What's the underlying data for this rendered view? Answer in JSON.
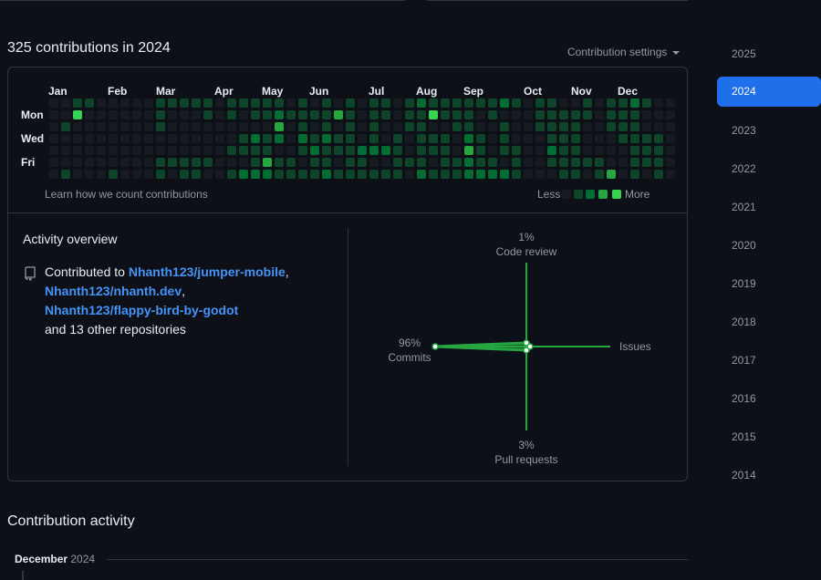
{
  "header": {
    "title": "325 contributions in 2024",
    "settings_label": "Contribution settings"
  },
  "colors": {
    "levels": [
      "#161b22",
      "#0e4429",
      "#006d32",
      "#26a641",
      "#39d353"
    ],
    "accent": "#1f6feb",
    "link": "#4493f8"
  },
  "calendar": {
    "months": [
      "Jan",
      "Feb",
      "Mar",
      "Apr",
      "May",
      "Jun",
      "Jul",
      "Aug",
      "Sep",
      "Oct",
      "Nov",
      "Dec"
    ],
    "day_labels": [
      "Mon",
      "Wed",
      "Fri"
    ],
    "learn_link": "Learn how we count contributions",
    "legend_less": "Less",
    "legend_more": "More",
    "weeks": [
      [
        0,
        0,
        0,
        0,
        0,
        0,
        0
      ],
      [
        0,
        0,
        1,
        0,
        0,
        0,
        1
      ],
      [
        1,
        4,
        0,
        0,
        0,
        0,
        0
      ],
      [
        1,
        0,
        0,
        0,
        0,
        0,
        0
      ],
      [
        0,
        0,
        0,
        0,
        0,
        0,
        0
      ],
      [
        0,
        0,
        0,
        0,
        0,
        0,
        1
      ],
      [
        0,
        0,
        0,
        0,
        0,
        0,
        0
      ],
      [
        0,
        0,
        0,
        0,
        0,
        0,
        0
      ],
      [
        0,
        0,
        0,
        0,
        0,
        0,
        0
      ],
      [
        1,
        1,
        1,
        0,
        0,
        1,
        1
      ],
      [
        1,
        0,
        0,
        0,
        0,
        1,
        0
      ],
      [
        1,
        0,
        0,
        0,
        0,
        1,
        1
      ],
      [
        1,
        0,
        0,
        0,
        0,
        1,
        1
      ],
      [
        1,
        1,
        0,
        0,
        0,
        1,
        0
      ],
      [
        0,
        0,
        0,
        0,
        0,
        0,
        0
      ],
      [
        1,
        1,
        0,
        0,
        1,
        0,
        1
      ],
      [
        1,
        0,
        0,
        1,
        1,
        0,
        2
      ],
      [
        1,
        1,
        0,
        2,
        1,
        1,
        2
      ],
      [
        1,
        1,
        0,
        1,
        1,
        3,
        2
      ],
      [
        1,
        2,
        3,
        2,
        0,
        1,
        1
      ],
      [
        0,
        1,
        0,
        0,
        0,
        1,
        1
      ],
      [
        1,
        1,
        1,
        2,
        1,
        0,
        1
      ],
      [
        0,
        1,
        0,
        1,
        2,
        1,
        1
      ],
      [
        1,
        1,
        1,
        2,
        1,
        1,
        2
      ],
      [
        0,
        3,
        0,
        1,
        1,
        0,
        1
      ],
      [
        1,
        1,
        1,
        1,
        1,
        1,
        1
      ],
      [
        0,
        0,
        0,
        0,
        2,
        1,
        1
      ],
      [
        1,
        1,
        1,
        1,
        2,
        0,
        1
      ],
      [
        1,
        1,
        0,
        0,
        2,
        0,
        1
      ],
      [
        0,
        0,
        0,
        1,
        1,
        1,
        1
      ],
      [
        1,
        1,
        1,
        0,
        0,
        1,
        0
      ],
      [
        2,
        1,
        1,
        1,
        1,
        1,
        2
      ],
      [
        1,
        4,
        0,
        1,
        1,
        0,
        1
      ],
      [
        1,
        1,
        0,
        1,
        1,
        1,
        1
      ],
      [
        1,
        1,
        1,
        0,
        0,
        1,
        1
      ],
      [
        1,
        1,
        1,
        2,
        3,
        2,
        2
      ],
      [
        1,
        0,
        0,
        1,
        1,
        1,
        2
      ],
      [
        1,
        1,
        0,
        0,
        0,
        1,
        2
      ],
      [
        2,
        0,
        1,
        1,
        1,
        0,
        2
      ],
      [
        1,
        0,
        0,
        0,
        1,
        1,
        1
      ],
      [
        0,
        0,
        0,
        0,
        0,
        0,
        0
      ],
      [
        1,
        1,
        1,
        0,
        0,
        0,
        0
      ],
      [
        1,
        1,
        1,
        1,
        2,
        1,
        0
      ],
      [
        0,
        1,
        1,
        1,
        1,
        1,
        1
      ],
      [
        0,
        1,
        1,
        1,
        1,
        1,
        1
      ],
      [
        1,
        1,
        0,
        0,
        0,
        1,
        0
      ],
      [
        0,
        0,
        0,
        0,
        0,
        1,
        1
      ],
      [
        1,
        1,
        1,
        0,
        0,
        0,
        3
      ],
      [
        1,
        1,
        1,
        1,
        0,
        0,
        0
      ],
      [
        2,
        1,
        1,
        1,
        1,
        1,
        1
      ],
      [
        1,
        0,
        0,
        1,
        1,
        1,
        0
      ],
      [
        0,
        0,
        0,
        1,
        1,
        1,
        1
      ],
      [
        0,
        0,
        0,
        0,
        0,
        0,
        0
      ]
    ]
  },
  "overview": {
    "title": "Activity overview",
    "contributed_to": "Contributed to",
    "repos": [
      "Nhanth123/jumper-mobile",
      "Nhanth123/nhanth.dev",
      "Nhanth123/flappy-bird-by-godot"
    ],
    "sep1": ",",
    "sep2": ",",
    "others": "and 13 other repositories"
  },
  "radar": {
    "code_review": {
      "pct": "1%",
      "label": "Code review"
    },
    "issues": {
      "pct": "",
      "label": "Issues"
    },
    "pull_requests": {
      "pct": "3%",
      "label": "Pull requests"
    },
    "commits": {
      "pct": "96%",
      "label": "Commits"
    },
    "values": {
      "commits": 96,
      "code_review": 1,
      "pull_requests": 3,
      "issues": 0
    }
  },
  "years": [
    "2025",
    "2024",
    "2023",
    "2022",
    "2021",
    "2020",
    "2019",
    "2018",
    "2017",
    "2016",
    "2015",
    "2014"
  ],
  "selected_year": "2024",
  "activity": {
    "title": "Contribution activity",
    "month": "December",
    "year": "2024"
  }
}
